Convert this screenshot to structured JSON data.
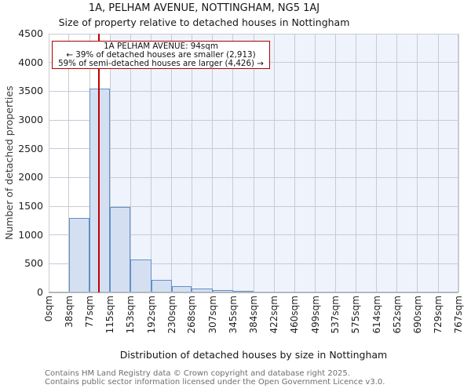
{
  "title": "1A, PELHAM AVENUE, NOTTINGHAM, NG5 1AJ",
  "subtitle": "Size of property relative to detached houses in Nottingham",
  "annotation": {
    "line1": "1A PELHAM AVENUE: 94sqm",
    "line2": "← 39% of detached houses are smaller (2,913)",
    "line3": "59% of semi-detached houses are larger (4,426) →"
  },
  "footer": {
    "line1": "Contains HM Land Registry data © Crown copyright and database right 2025.",
    "line2": "Contains public sector information licensed under the Open Government Licence v3.0."
  },
  "chart_data": {
    "type": "bar",
    "histogram": true,
    "title": "1A, PELHAM AVENUE, NOTTINGHAM, NG5 1AJ",
    "subtitle": "Size of property relative to detached houses in Nottingham",
    "xlabel": "Distribution of detached houses by size in Nottingham",
    "ylabel": "Number of detached properties",
    "bin_edges_sqm": [
      0,
      38,
      77,
      115,
      153,
      192,
      230,
      268,
      307,
      345,
      384,
      422,
      460,
      499,
      537,
      575,
      614,
      652,
      690,
      729,
      767
    ],
    "x_tick_labels": [
      "0sqm",
      "38sqm",
      "77sqm",
      "115sqm",
      "153sqm",
      "192sqm",
      "230sqm",
      "268sqm",
      "307sqm",
      "345sqm",
      "384sqm",
      "422sqm",
      "460sqm",
      "499sqm",
      "537sqm",
      "575sqm",
      "614sqm",
      "652sqm",
      "690sqm",
      "729sqm",
      "767sqm"
    ],
    "values": [
      12,
      1300,
      3550,
      1480,
      570,
      225,
      110,
      70,
      40,
      25,
      15,
      0,
      12,
      0,
      0,
      0,
      0,
      0,
      0,
      0
    ],
    "y_tick_labels": [
      "0",
      "500",
      "1000",
      "1500",
      "2000",
      "2500",
      "3000",
      "3500",
      "4000",
      "4500"
    ],
    "ylim": [
      0,
      4500
    ],
    "ytick_step": 500,
    "xlim_sqm": [
      0,
      767
    ],
    "grid": true,
    "legend": "none",
    "marker_line_sqm": 94,
    "shade_from_sqm": 115,
    "colors": {
      "bar_fill": "#d4e0f2",
      "bar_edge": "#6190c8",
      "marker": "#c00000",
      "annotation_border": "#b00000",
      "shade": "#eff3fc",
      "grid": "#c9cbd3",
      "spine": "#c9cbd3",
      "baseline": "#b4b7bd"
    }
  }
}
